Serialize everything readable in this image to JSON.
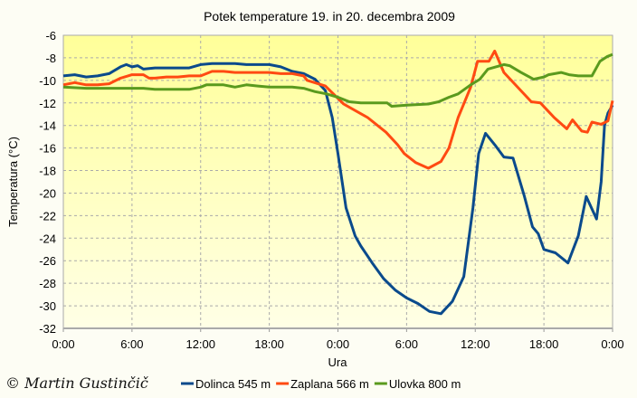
{
  "chart_data": {
    "type": "line",
    "title": "Potek temperature 19. in 20. decembra 2009",
    "xlabel": "Ura",
    "ylabel": "Temperatura (°C)",
    "xlim_hours": [
      0,
      48
    ],
    "ylim": [
      -32,
      -6
    ],
    "x_ticks": [
      {
        "h": 0,
        "label": "0:00"
      },
      {
        "h": 6,
        "label": "6:00"
      },
      {
        "h": 12,
        "label": "12:00"
      },
      {
        "h": 18,
        "label": "18:00"
      },
      {
        "h": 24,
        "label": "0:00"
      },
      {
        "h": 30,
        "label": "6:00"
      },
      {
        "h": 36,
        "label": "12:00"
      },
      {
        "h": 42,
        "label": "18:00"
      },
      {
        "h": 48,
        "label": "0:00"
      }
    ],
    "y_ticks": [
      -6,
      -8,
      -10,
      -12,
      -14,
      -16,
      -18,
      -20,
      -22,
      -24,
      -26,
      -28,
      -30,
      -32
    ],
    "grid": true,
    "legend_position": "bottom",
    "series": [
      {
        "name": "Dolinca 545 m",
        "color": "#0a4a8c",
        "points": [
          [
            0,
            -9.6
          ],
          [
            1,
            -9.5
          ],
          [
            2,
            -9.7
          ],
          [
            3,
            -9.6
          ],
          [
            4,
            -9.4
          ],
          [
            5,
            -8.8
          ],
          [
            5.5,
            -8.6
          ],
          [
            6,
            -8.8
          ],
          [
            6.5,
            -8.7
          ],
          [
            7,
            -9.0
          ],
          [
            8,
            -8.9
          ],
          [
            9,
            -8.9
          ],
          [
            10,
            -8.9
          ],
          [
            11,
            -8.9
          ],
          [
            12,
            -8.6
          ],
          [
            13,
            -8.5
          ],
          [
            14,
            -8.5
          ],
          [
            15,
            -8.5
          ],
          [
            16,
            -8.6
          ],
          [
            17,
            -8.6
          ],
          [
            18,
            -8.6
          ],
          [
            19,
            -8.8
          ],
          [
            20,
            -9.2
          ],
          [
            21,
            -9.4
          ],
          [
            22,
            -9.9
          ],
          [
            22.9,
            -10.9
          ],
          [
            23.5,
            -13.3
          ],
          [
            24,
            -16.5
          ],
          [
            24.7,
            -21.3
          ],
          [
            25.5,
            -23.8
          ],
          [
            26,
            -24.7
          ],
          [
            27,
            -26.2
          ],
          [
            28,
            -27.6
          ],
          [
            29,
            -28.6
          ],
          [
            30,
            -29.3
          ],
          [
            31,
            -29.8
          ],
          [
            32,
            -30.5
          ],
          [
            33,
            -30.7
          ],
          [
            34,
            -29.6
          ],
          [
            35,
            -27.4
          ],
          [
            35.8,
            -21.3
          ],
          [
            36.3,
            -16.5
          ],
          [
            36.9,
            -14.7
          ],
          [
            37.7,
            -15.7
          ],
          [
            38.5,
            -16.8
          ],
          [
            39.3,
            -16.9
          ],
          [
            40.3,
            -20.3
          ],
          [
            41,
            -23.0
          ],
          [
            41.5,
            -23.6
          ],
          [
            42,
            -25.0
          ],
          [
            43,
            -25.3
          ],
          [
            44.1,
            -26.2
          ],
          [
            45,
            -23.8
          ],
          [
            45.7,
            -20.3
          ],
          [
            46.6,
            -22.3
          ],
          [
            47,
            -19.0
          ],
          [
            47.3,
            -14.0
          ],
          [
            47.6,
            -12.9
          ],
          [
            48,
            -12.2
          ]
        ]
      },
      {
        "name": "Zaplana 566 m",
        "color": "#ff4a12",
        "points": [
          [
            0,
            -10.4
          ],
          [
            1,
            -10.2
          ],
          [
            2,
            -10.4
          ],
          [
            3,
            -10.4
          ],
          [
            4,
            -10.3
          ],
          [
            5,
            -9.8
          ],
          [
            6,
            -9.5
          ],
          [
            7,
            -9.5
          ],
          [
            7.5,
            -9.8
          ],
          [
            8,
            -9.8
          ],
          [
            9,
            -9.7
          ],
          [
            10,
            -9.7
          ],
          [
            11,
            -9.6
          ],
          [
            12,
            -9.6
          ],
          [
            13,
            -9.2
          ],
          [
            14,
            -9.2
          ],
          [
            15,
            -9.3
          ],
          [
            16,
            -9.3
          ],
          [
            17,
            -9.3
          ],
          [
            18,
            -9.3
          ],
          [
            19,
            -9.4
          ],
          [
            20,
            -9.4
          ],
          [
            21,
            -9.6
          ],
          [
            21.3,
            -10.0
          ],
          [
            22.9,
            -10.5
          ],
          [
            24.5,
            -12.1
          ],
          [
            26.6,
            -13.3
          ],
          [
            28.2,
            -14.6
          ],
          [
            29.2,
            -15.7
          ],
          [
            29.8,
            -16.5
          ],
          [
            30.8,
            -17.3
          ],
          [
            31.9,
            -17.8
          ],
          [
            33,
            -17.2
          ],
          [
            33.7,
            -16.0
          ],
          [
            34.5,
            -13.3
          ],
          [
            35.6,
            -10.6
          ],
          [
            36.2,
            -8.3
          ],
          [
            37.2,
            -8.3
          ],
          [
            37.7,
            -7.4
          ],
          [
            38.5,
            -9.3
          ],
          [
            40.9,
            -11.9
          ],
          [
            41.7,
            -12.0
          ],
          [
            42.9,
            -13.3
          ],
          [
            44,
            -14.3
          ],
          [
            44.5,
            -13.5
          ],
          [
            45.3,
            -14.5
          ],
          [
            45.8,
            -14.6
          ],
          [
            46.2,
            -13.7
          ],
          [
            47,
            -13.9
          ],
          [
            47.6,
            -13.6
          ],
          [
            48,
            -11.8
          ]
        ]
      },
      {
        "name": "Ulovka 800 m",
        "color": "#5a9a1e",
        "points": [
          [
            0,
            -10.6
          ],
          [
            2,
            -10.7
          ],
          [
            4,
            -10.7
          ],
          [
            6,
            -10.7
          ],
          [
            7,
            -10.7
          ],
          [
            8,
            -10.8
          ],
          [
            11,
            -10.8
          ],
          [
            12,
            -10.6
          ],
          [
            12.5,
            -10.4
          ],
          [
            14,
            -10.4
          ],
          [
            15,
            -10.6
          ],
          [
            16,
            -10.4
          ],
          [
            17,
            -10.5
          ],
          [
            18,
            -10.6
          ],
          [
            20,
            -10.6
          ],
          [
            21,
            -10.7
          ],
          [
            22,
            -11.0
          ],
          [
            23,
            -11.2
          ],
          [
            24,
            -11.5
          ],
          [
            25,
            -11.9
          ],
          [
            26,
            -12.0
          ],
          [
            28.3,
            -12.0
          ],
          [
            28.7,
            -12.3
          ],
          [
            30,
            -12.2
          ],
          [
            31.9,
            -12.1
          ],
          [
            32.8,
            -11.9
          ],
          [
            33.7,
            -11.5
          ],
          [
            34.5,
            -11.2
          ],
          [
            35.6,
            -10.4
          ],
          [
            36.4,
            -9.9
          ],
          [
            37.1,
            -9.0
          ],
          [
            38.5,
            -8.6
          ],
          [
            39,
            -8.7
          ],
          [
            40,
            -9.3
          ],
          [
            41.1,
            -9.9
          ],
          [
            42,
            -9.7
          ],
          [
            42.4,
            -9.5
          ],
          [
            43.5,
            -9.3
          ],
          [
            44.2,
            -9.5
          ],
          [
            45,
            -9.6
          ],
          [
            46.2,
            -9.6
          ],
          [
            46.9,
            -8.3
          ],
          [
            47.5,
            -7.9
          ],
          [
            48,
            -7.7
          ]
        ]
      }
    ]
  },
  "credit": "© Martin Gustinčič"
}
